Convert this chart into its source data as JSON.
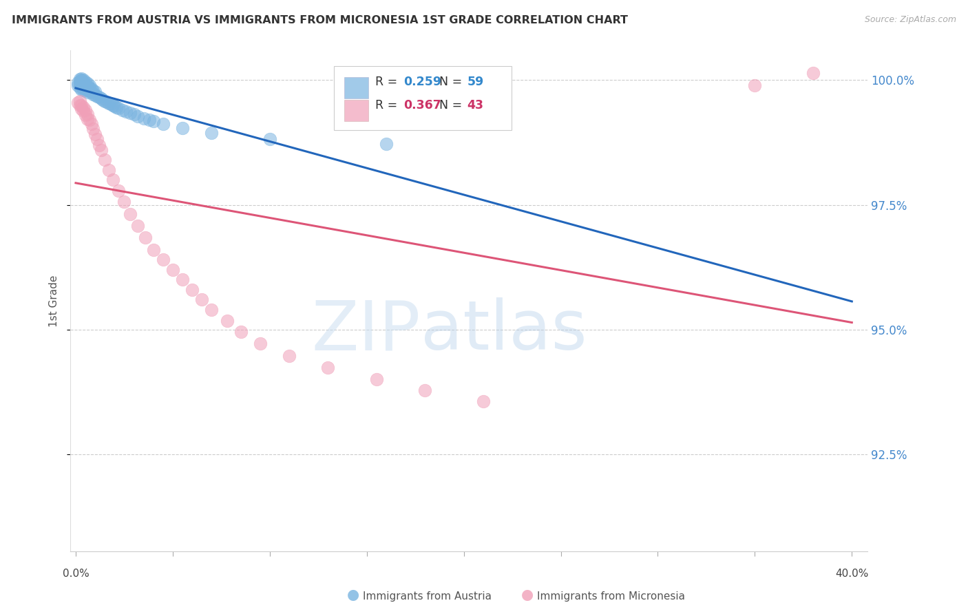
{
  "title": "IMMIGRANTS FROM AUSTRIA VS IMMIGRANTS FROM MICRONESIA 1ST GRADE CORRELATION CHART",
  "source": "Source: ZipAtlas.com",
  "ylabel": "1st Grade",
  "austria_color": "#7ab4e0",
  "micronesia_color": "#f0a0b8",
  "austria_line_color": "#2266bb",
  "micronesia_line_color": "#dd5577",
  "legend_r_austria": "0.259",
  "legend_n_austria": "59",
  "legend_r_micronesia": "0.367",
  "legend_n_micronesia": "43",
  "r_color_austria": "#3388cc",
  "r_color_micronesia": "#cc3366",
  "n_color_austria": "#3388cc",
  "n_color_micronesia": "#cc3366",
  "xlim_min": -0.003,
  "xlim_max": 0.408,
  "ylim_min": 0.9055,
  "ylim_max": 1.006,
  "yticks": [
    1.0,
    0.975,
    0.95,
    0.925
  ],
  "ytick_labels": [
    "100.0%",
    "97.5%",
    "95.0%",
    "92.5%"
  ],
  "xtick_positions": [
    0.0,
    0.05,
    0.1,
    0.15,
    0.2,
    0.25,
    0.3,
    0.35,
    0.4
  ],
  "bottom_legend_austria": "Immigrants from Austria",
  "bottom_legend_micronesia": "Immigrants from Micronesia",
  "austria_x": [
    0.001,
    0.001,
    0.002,
    0.002,
    0.002,
    0.002,
    0.003,
    0.003,
    0.003,
    0.003,
    0.003,
    0.003,
    0.004,
    0.004,
    0.004,
    0.004,
    0.004,
    0.005,
    0.005,
    0.005,
    0.005,
    0.006,
    0.006,
    0.006,
    0.006,
    0.007,
    0.007,
    0.007,
    0.008,
    0.008,
    0.009,
    0.009,
    0.01,
    0.01,
    0.011,
    0.012,
    0.013,
    0.014,
    0.015,
    0.016,
    0.017,
    0.018,
    0.019,
    0.02,
    0.021,
    0.022,
    0.024,
    0.026,
    0.028,
    0.03,
    0.032,
    0.035,
    0.038,
    0.04,
    0.045,
    0.055,
    0.07,
    0.1,
    0.16
  ],
  "austria_y": [
    0.999,
    0.9995,
    0.9985,
    0.9992,
    0.9998,
    1.0002,
    0.9982,
    0.9988,
    0.9994,
    0.9999,
    1.0001,
    1.0003,
    0.998,
    0.9986,
    0.9991,
    0.9997,
    1.0001,
    0.9978,
    0.9984,
    0.999,
    0.9996,
    0.9976,
    0.9982,
    0.9988,
    0.9994,
    0.9978,
    0.9984,
    0.999,
    0.9976,
    0.9983,
    0.9972,
    0.9979,
    0.997,
    0.9977,
    0.9968,
    0.9966,
    0.9963,
    0.996,
    0.9958,
    0.9956,
    0.9954,
    0.9952,
    0.995,
    0.9948,
    0.9946,
    0.9944,
    0.994,
    0.9937,
    0.9934,
    0.9931,
    0.9928,
    0.9924,
    0.992,
    0.9918,
    0.9912,
    0.9904,
    0.9895,
    0.9882,
    0.9872
  ],
  "micronesia_x": [
    0.001,
    0.002,
    0.002,
    0.003,
    0.003,
    0.004,
    0.004,
    0.005,
    0.005,
    0.006,
    0.006,
    0.007,
    0.008,
    0.009,
    0.01,
    0.011,
    0.012,
    0.013,
    0.015,
    0.017,
    0.019,
    0.022,
    0.025,
    0.028,
    0.032,
    0.036,
    0.04,
    0.045,
    0.05,
    0.055,
    0.06,
    0.065,
    0.07,
    0.078,
    0.085,
    0.095,
    0.11,
    0.13,
    0.155,
    0.18,
    0.21,
    0.35,
    0.38
  ],
  "micronesia_y": [
    0.9955,
    0.995,
    0.9958,
    0.9942,
    0.995,
    0.9938,
    0.9946,
    0.993,
    0.994,
    0.9922,
    0.9932,
    0.992,
    0.9912,
    0.9902,
    0.9892,
    0.9882,
    0.987,
    0.986,
    0.984,
    0.982,
    0.98,
    0.9778,
    0.9756,
    0.9732,
    0.9708,
    0.9684,
    0.966,
    0.964,
    0.962,
    0.96,
    0.958,
    0.956,
    0.954,
    0.9518,
    0.9496,
    0.9472,
    0.9448,
    0.9424,
    0.94,
    0.9378,
    0.9356,
    0.999,
    1.0015
  ]
}
